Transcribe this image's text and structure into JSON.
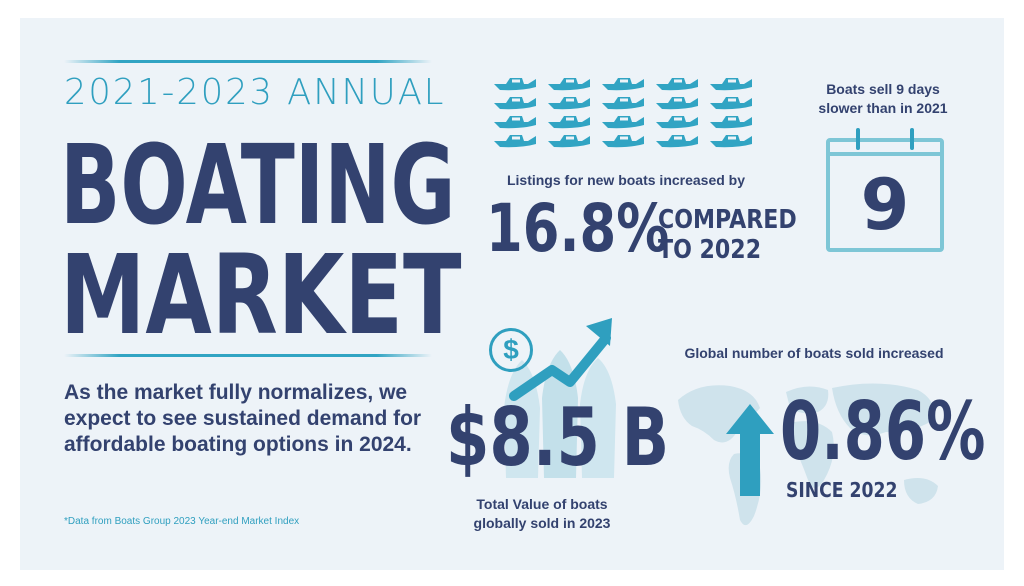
{
  "header": {
    "subtitle": "2021-2023 ANNUAL",
    "title_line1": "BOATING",
    "title_line2": "MARKET"
  },
  "body_text": "As the market fully normalizes, we expect to see sustained demand for affordable boating options in 2024.",
  "footnote": "*Data from Boats Group 2023 Year-end Market Index",
  "listings": {
    "caption": "Listings for new boats increased by",
    "value": "16.8%",
    "qualifier_line1": "COMPARED",
    "qualifier_line2": "TO 2022",
    "boat_icon_rows": 4,
    "boat_icon_cols": 5
  },
  "days": {
    "caption_line1": "Boats sell 9 days",
    "caption_line2": "slower than in 2021",
    "value": "9",
    "icon": "calendar-icon"
  },
  "value_sold": {
    "symbol": "$",
    "value": "$8.5 B",
    "caption_line1": "Total Value of boats",
    "caption_line2": "globally sold in 2023",
    "icons": [
      "dollar-coin-icon",
      "trend-arrow-icon",
      "boats-illustration"
    ]
  },
  "global_sold": {
    "caption": "Global number of boats sold increased",
    "value": "0.86%",
    "since": "SINCE 2022",
    "icons": [
      "world-map-icon",
      "up-arrow-icon"
    ]
  },
  "colors": {
    "background": "#edf3f8",
    "navy": "#33426f",
    "teal": "#2f9fbf",
    "light_teal": "#7ec6d6"
  }
}
